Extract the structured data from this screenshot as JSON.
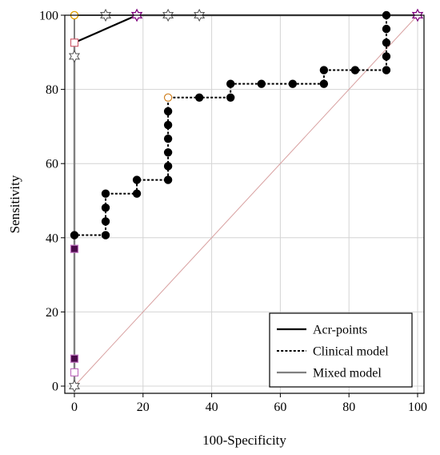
{
  "chart_data": {
    "type": "line",
    "xlabel": "100-Specificity",
    "ylabel": "Sensitivity",
    "xlim": [
      0,
      100
    ],
    "ylim": [
      0,
      100
    ],
    "xticks": [
      0,
      20,
      40,
      60,
      80,
      100
    ],
    "yticks": [
      0,
      20,
      40,
      60,
      80,
      100
    ],
    "grid": true,
    "legend_position": "bottom-right",
    "reference_line": {
      "x": [
        0,
        100
      ],
      "y": [
        0,
        100
      ],
      "color": "#d8a0a0"
    },
    "series": [
      {
        "name": "Acr-points",
        "style": "solid",
        "color": "#000000",
        "x": [
          0,
          0,
          18.2,
          100
        ],
        "y": [
          0,
          92.6,
          100,
          100
        ],
        "markers": [
          {
            "x": 0,
            "y": 3.7,
            "shape": "square",
            "fill": "#ffffff",
            "stroke": "#c070c0"
          },
          {
            "x": 0,
            "y": 7.4,
            "shape": "square",
            "fill": "#4a0a4a",
            "stroke": "#c070c0"
          },
          {
            "x": 0,
            "y": 37.0,
            "shape": "square",
            "fill": "#4a0a4a",
            "stroke": "#c070c0"
          },
          {
            "x": 0,
            "y": 92.6,
            "shape": "square",
            "fill": "#ffffff",
            "stroke": "#d06070"
          }
        ]
      },
      {
        "name": "Clinical model",
        "style": "dashed",
        "color": "#000000",
        "x": [
          0,
          0,
          9.1,
          9.1,
          9.1,
          9.1,
          18.2,
          18.2,
          27.3,
          27.3,
          27.3,
          27.3,
          27.3,
          27.3,
          27.3,
          36.4,
          45.5,
          45.5,
          54.5,
          63.6,
          72.7,
          72.7,
          81.8,
          90.9,
          90.9,
          90.9,
          90.9,
          90.9,
          100
        ],
        "y": [
          0,
          40.7,
          40.7,
          44.4,
          48.1,
          51.9,
          51.9,
          55.6,
          55.6,
          59.3,
          63.0,
          66.7,
          70.4,
          74.1,
          77.8,
          77.8,
          77.8,
          81.5,
          81.5,
          81.5,
          81.5,
          85.2,
          85.2,
          85.2,
          88.9,
          92.6,
          96.3,
          100,
          100
        ],
        "markers": [
          {
            "x": 0,
            "y": 40.7
          },
          {
            "x": 9.1,
            "y": 40.7
          },
          {
            "x": 9.1,
            "y": 44.4
          },
          {
            "x": 9.1,
            "y": 48.1
          },
          {
            "x": 9.1,
            "y": 51.9
          },
          {
            "x": 18.2,
            "y": 51.9
          },
          {
            "x": 18.2,
            "y": 55.6
          },
          {
            "x": 27.3,
            "y": 55.6
          },
          {
            "x": 27.3,
            "y": 59.3
          },
          {
            "x": 27.3,
            "y": 63.0
          },
          {
            "x": 27.3,
            "y": 66.7
          },
          {
            "x": 27.3,
            "y": 70.4
          },
          {
            "x": 27.3,
            "y": 74.1
          },
          {
            "x": 27.3,
            "y": 77.8,
            "fill": "#ffffff",
            "stroke": "#d08020"
          },
          {
            "x": 36.4,
            "y": 77.8
          },
          {
            "x": 45.5,
            "y": 77.8
          },
          {
            "x": 45.5,
            "y": 81.5
          },
          {
            "x": 54.5,
            "y": 81.5
          },
          {
            "x": 63.6,
            "y": 81.5
          },
          {
            "x": 72.7,
            "y": 81.5
          },
          {
            "x": 72.7,
            "y": 85.2
          },
          {
            "x": 81.8,
            "y": 85.2
          },
          {
            "x": 90.9,
            "y": 85.2
          },
          {
            "x": 90.9,
            "y": 88.9
          },
          {
            "x": 90.9,
            "y": 92.6
          },
          {
            "x": 90.9,
            "y": 96.3
          },
          {
            "x": 90.9,
            "y": 100
          }
        ]
      },
      {
        "name": "Mixed model",
        "style": "solid",
        "color": "#808080",
        "x": [
          0,
          0,
          0,
          9.1,
          18.2,
          27.3,
          36.4,
          100
        ],
        "y": [
          0,
          88.9,
          100,
          100,
          100,
          100,
          100,
          100
        ],
        "markers": [
          {
            "x": 0,
            "y": 0,
            "shape": "star"
          },
          {
            "x": 0,
            "y": 88.9,
            "shape": "star"
          },
          {
            "x": 9.1,
            "y": 100,
            "shape": "star"
          },
          {
            "x": 18.2,
            "y": 100,
            "shape": "star"
          },
          {
            "x": 27.3,
            "y": 100,
            "shape": "star"
          },
          {
            "x": 36.4,
            "y": 100,
            "shape": "star"
          },
          {
            "x": 100,
            "y": 100,
            "shape": "star"
          }
        ]
      }
    ],
    "special_markers": [
      {
        "x": 0,
        "y": 100,
        "shape": "circle",
        "fill": "#ffffff",
        "stroke": "#e0a000"
      },
      {
        "x": 18.2,
        "y": 100,
        "shape": "star",
        "fill": "#ffffff",
        "stroke": "#800080"
      },
      {
        "x": 100,
        "y": 100,
        "shape": "star",
        "fill": "#ffffff",
        "stroke": "#800080"
      }
    ]
  }
}
